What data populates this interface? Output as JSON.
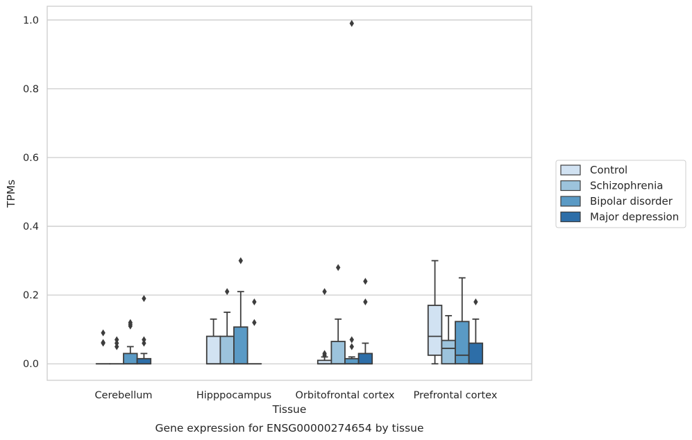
{
  "chart_data": {
    "type": "box",
    "caption": "Gene expression for ENSG00000274654 by tissue",
    "xlabel": "Tissue",
    "ylabel": "TPMs",
    "ylim": [
      -0.048,
      1.04
    ],
    "yticks": [
      0.0,
      0.2,
      0.4,
      0.6,
      0.8,
      1.0
    ],
    "ytick_labels": [
      "0.0",
      "0.2",
      "0.4",
      "0.6",
      "0.8",
      "1.0"
    ],
    "grid": "horizontal",
    "legend_position": "right-center",
    "categories": [
      "Cerebellum",
      "Hipppocampus",
      "Orbitofrontal cortex",
      "Prefrontal cortex"
    ],
    "series": [
      {
        "name": "Control",
        "color": "#d1e2f2",
        "boxes": [
          {
            "q1": 0.0,
            "median": 0.0,
            "q3": 0.0,
            "whisker_low": 0.0,
            "whisker_high": 0.0,
            "outliers": [
              0.06,
              0.062,
              0.09
            ]
          },
          {
            "q1": 0.0,
            "median": 0.0,
            "q3": 0.08,
            "whisker_low": 0.0,
            "whisker_high": 0.13,
            "outliers": []
          },
          {
            "q1": 0.0,
            "median": 0.0,
            "q3": 0.01,
            "whisker_low": 0.0,
            "whisker_high": 0.02,
            "outliers": [
              0.025,
              0.03,
              0.21
            ]
          },
          {
            "q1": 0.025,
            "median": 0.08,
            "q3": 0.17,
            "whisker_low": 0.0,
            "whisker_high": 0.3,
            "outliers": []
          }
        ]
      },
      {
        "name": "Schizophrenia",
        "color": "#9cc3dc",
        "boxes": [
          {
            "q1": 0.0,
            "median": 0.0,
            "q3": 0.0,
            "whisker_low": 0.0,
            "whisker_high": 0.0,
            "outliers": [
              0.05,
              0.06,
              0.07
            ]
          },
          {
            "q1": 0.0,
            "median": 0.0,
            "q3": 0.08,
            "whisker_low": 0.0,
            "whisker_high": 0.15,
            "outliers": [
              0.21
            ]
          },
          {
            "q1": 0.0,
            "median": 0.0,
            "q3": 0.065,
            "whisker_low": 0.0,
            "whisker_high": 0.13,
            "outliers": [
              0.28
            ]
          },
          {
            "q1": 0.0,
            "median": 0.045,
            "q3": 0.068,
            "whisker_low": 0.0,
            "whisker_high": 0.14,
            "outliers": []
          }
        ]
      },
      {
        "name": "Bipolar disorder",
        "color": "#5a9ac5",
        "boxes": [
          {
            "q1": 0.0,
            "median": 0.0,
            "q3": 0.03,
            "whisker_low": 0.0,
            "whisker_high": 0.05,
            "outliers": [
              0.11,
              0.115,
              0.12
            ]
          },
          {
            "q1": 0.0,
            "median": 0.0,
            "q3": 0.107,
            "whisker_low": 0.0,
            "whisker_high": 0.21,
            "outliers": [
              0.3
            ]
          },
          {
            "q1": 0.0,
            "median": 0.0,
            "q3": 0.015,
            "whisker_low": 0.0,
            "whisker_high": 0.02,
            "outliers": [
              0.05,
              0.07,
              0.99
            ]
          },
          {
            "q1": 0.0,
            "median": 0.025,
            "q3": 0.123,
            "whisker_low": 0.0,
            "whisker_high": 0.25,
            "outliers": []
          }
        ]
      },
      {
        "name": "Major depression",
        "color": "#2d6ea8",
        "boxes": [
          {
            "q1": 0.0,
            "median": 0.0,
            "q3": 0.015,
            "whisker_low": 0.0,
            "whisker_high": 0.03,
            "outliers": [
              0.06,
              0.07,
              0.19
            ]
          },
          {
            "q1": 0.0,
            "median": 0.0,
            "q3": 0.0,
            "whisker_low": 0.0,
            "whisker_high": 0.0,
            "outliers": [
              0.12,
              0.18
            ]
          },
          {
            "q1": 0.0,
            "median": 0.0,
            "q3": 0.03,
            "whisker_low": 0.0,
            "whisker_high": 0.06,
            "outliers": [
              0.18,
              0.24
            ]
          },
          {
            "q1": 0.0,
            "median": 0.0,
            "q3": 0.06,
            "whisker_low": 0.0,
            "whisker_high": 0.13,
            "outliers": [
              0.18
            ]
          }
        ]
      }
    ]
  }
}
